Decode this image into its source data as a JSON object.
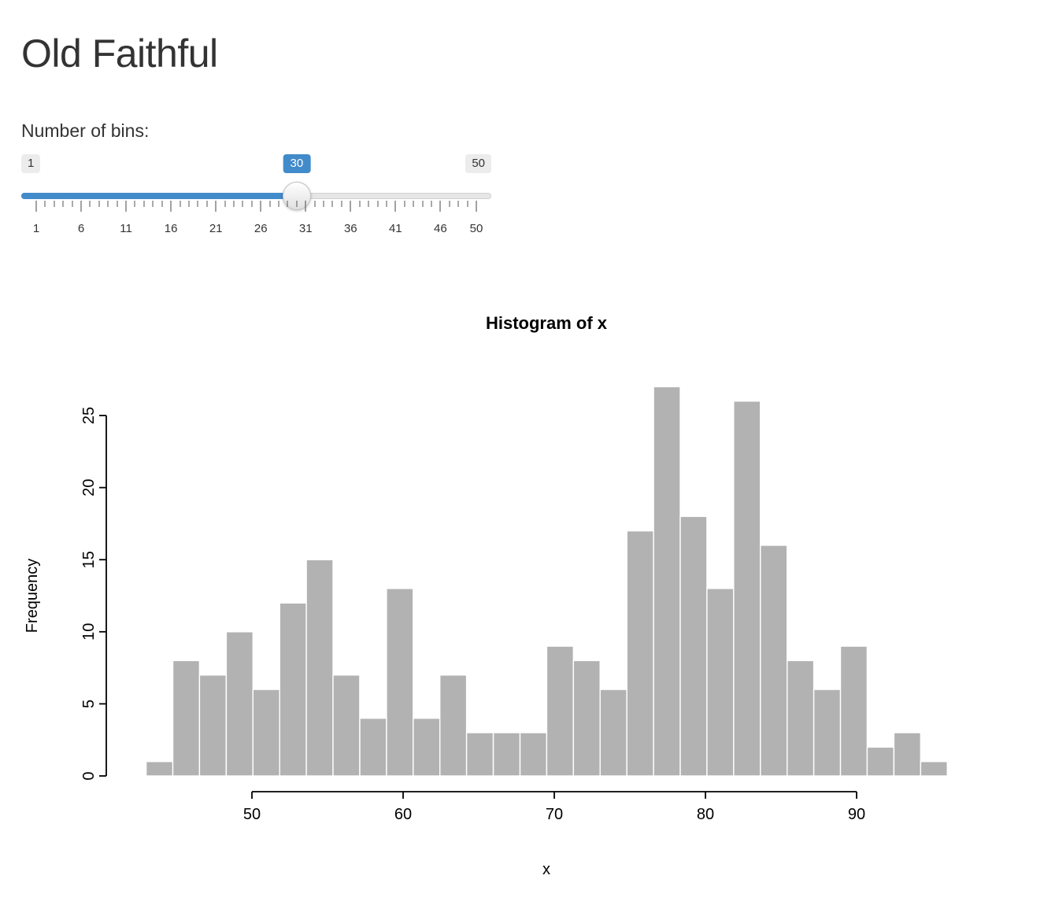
{
  "page": {
    "title": "Old Faithful",
    "background": "#ffffff"
  },
  "slider": {
    "label": "Number of bins:",
    "min": 1,
    "max": 50,
    "value": 30,
    "min_label": "1",
    "max_label": "50",
    "value_label": "30",
    "tick_values": [
      1,
      6,
      11,
      16,
      21,
      26,
      31,
      36,
      41,
      46,
      50
    ],
    "tick_labels": [
      "1",
      "6",
      "11",
      "16",
      "21",
      "26",
      "31",
      "36",
      "41",
      "46",
      "50"
    ],
    "accent_color": "#428bca"
  },
  "chart_data": {
    "type": "bar",
    "title": "Histogram of x",
    "xlabel": "x",
    "ylabel": "Frequency",
    "bin_start": 43,
    "bin_width": 1.7666667,
    "counts": [
      1,
      8,
      7,
      10,
      6,
      12,
      15,
      7,
      4,
      13,
      4,
      7,
      3,
      3,
      3,
      9,
      8,
      6,
      17,
      27,
      18,
      13,
      26,
      16,
      8,
      6,
      9,
      2,
      3,
      1
    ],
    "x_ticks": [
      50,
      60,
      70,
      80,
      90
    ],
    "y_ticks": [
      0,
      5,
      10,
      15,
      20,
      25
    ],
    "xlim": [
      43,
      96
    ],
    "ylim": [
      0,
      27
    ],
    "grid": false,
    "bar_color": "#b2b2b2",
    "bar_border": "#ffffff",
    "axis_color": "#000000"
  }
}
